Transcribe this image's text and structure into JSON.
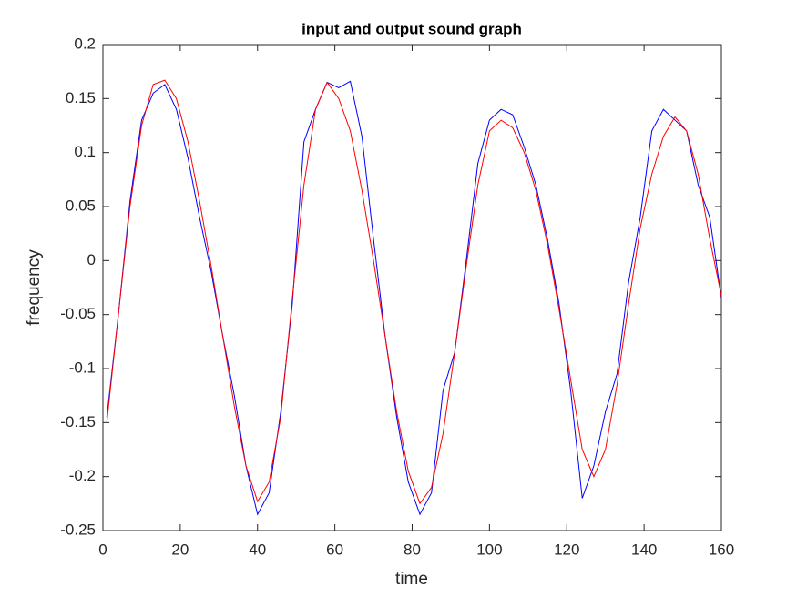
{
  "chart_data": {
    "type": "line",
    "title": "input and output sound graph",
    "xlabel": "time",
    "ylabel": "frequency",
    "x": [
      1,
      4,
      7,
      10,
      13,
      16,
      19,
      22,
      25,
      28,
      31,
      34,
      37,
      40,
      43,
      46,
      49,
      52,
      55,
      58,
      61,
      64,
      67,
      70,
      73,
      76,
      79,
      82,
      85,
      88,
      91,
      94,
      97,
      100,
      103,
      106,
      109,
      112,
      115,
      118,
      121,
      124,
      127,
      130,
      133,
      136,
      139,
      142,
      145,
      148,
      151,
      154,
      157,
      160
    ],
    "series": [
      {
        "color": "#0000ff",
        "values": [
          -0.145,
          -0.05,
          0.055,
          0.13,
          0.155,
          0.163,
          0.14,
          0.095,
          0.04,
          -0.01,
          -0.07,
          -0.125,
          -0.19,
          -0.235,
          -0.215,
          -0.14,
          -0.04,
          0.11,
          0.14,
          0.165,
          0.16,
          0.166,
          0.115,
          0.02,
          -0.07,
          -0.145,
          -0.205,
          -0.235,
          -0.215,
          -0.12,
          -0.085,
          0.0,
          0.09,
          0.13,
          0.14,
          0.135,
          0.105,
          0.07,
          0.02,
          -0.04,
          -0.12,
          -0.22,
          -0.19,
          -0.14,
          -0.105,
          -0.02,
          0.04,
          0.12,
          0.14,
          0.13,
          0.12,
          0.07,
          0.04,
          -0.035
        ]
      },
      {
        "color": "#ff0000",
        "values": [
          -0.15,
          -0.05,
          0.05,
          0.125,
          0.163,
          0.167,
          0.15,
          0.11,
          0.055,
          -0.005,
          -0.07,
          -0.135,
          -0.19,
          -0.223,
          -0.205,
          -0.145,
          -0.035,
          0.07,
          0.14,
          0.165,
          0.15,
          0.12,
          0.065,
          0.0,
          -0.07,
          -0.14,
          -0.195,
          -0.225,
          -0.21,
          -0.16,
          -0.085,
          -0.005,
          0.07,
          0.12,
          0.13,
          0.123,
          0.1,
          0.065,
          0.015,
          -0.045,
          -0.11,
          -0.175,
          -0.2,
          -0.175,
          -0.115,
          -0.04,
          0.03,
          0.08,
          0.115,
          0.133,
          0.12,
          0.08,
          0.02,
          -0.033
        ]
      }
    ],
    "xlim": [
      0,
      160
    ],
    "ylim": [
      -0.25,
      0.2
    ],
    "xticks": [
      0,
      20,
      40,
      60,
      80,
      100,
      120,
      140,
      160
    ],
    "yticks": [
      -0.25,
      -0.2,
      -0.15,
      -0.1,
      -0.05,
      0,
      0.05,
      0.1,
      0.15,
      0.2
    ]
  }
}
